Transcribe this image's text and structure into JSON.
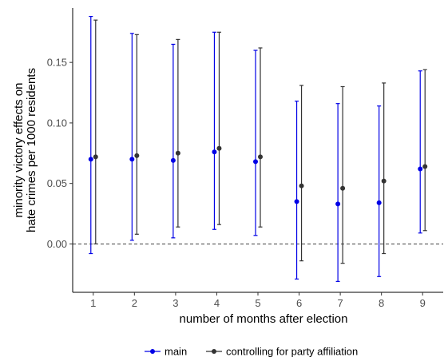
{
  "chart_data": {
    "type": "scatter",
    "xlabel": "number of months after election",
    "ylabel": [
      "minority victory effects on",
      "hate crimes per 1000 residents"
    ],
    "x": [
      1,
      2,
      3,
      4,
      5,
      6,
      7,
      8,
      9
    ],
    "xlim": [
      0.5,
      9.5
    ],
    "ylim": [
      -0.04,
      0.195
    ],
    "yticks": [
      0.0,
      0.05,
      0.1,
      0.15
    ],
    "ytick_labels": [
      "0.00",
      "0.05",
      "0.10",
      "0.15"
    ],
    "reference_line": {
      "y": 0,
      "style": "dashed"
    },
    "series": [
      {
        "name": "main",
        "color": "#0000e6",
        "values": [
          0.07,
          0.07,
          0.069,
          0.076,
          0.068,
          0.035,
          0.033,
          0.034,
          0.062
        ],
        "lower": [
          -0.008,
          0.003,
          0.005,
          0.012,
          0.007,
          -0.029,
          -0.031,
          -0.027,
          0.009
        ],
        "upper": [
          0.188,
          0.174,
          0.165,
          0.175,
          0.16,
          0.118,
          0.116,
          0.114,
          0.143
        ]
      },
      {
        "name": "controlling for party affiliation",
        "color": "#333333",
        "values": [
          0.072,
          0.073,
          0.075,
          0.079,
          0.072,
          0.048,
          0.046,
          0.052,
          0.064
        ],
        "lower": [
          0.0,
          0.008,
          0.014,
          0.016,
          0.014,
          -0.014,
          -0.016,
          -0.008,
          0.011
        ],
        "upper": [
          0.185,
          0.173,
          0.169,
          0.175,
          0.162,
          0.131,
          0.13,
          0.133,
          0.144
        ]
      }
    ],
    "legend": {
      "placement": "bottom",
      "entries": [
        "main",
        "controlling for party affiliation"
      ]
    },
    "grid": false
  }
}
